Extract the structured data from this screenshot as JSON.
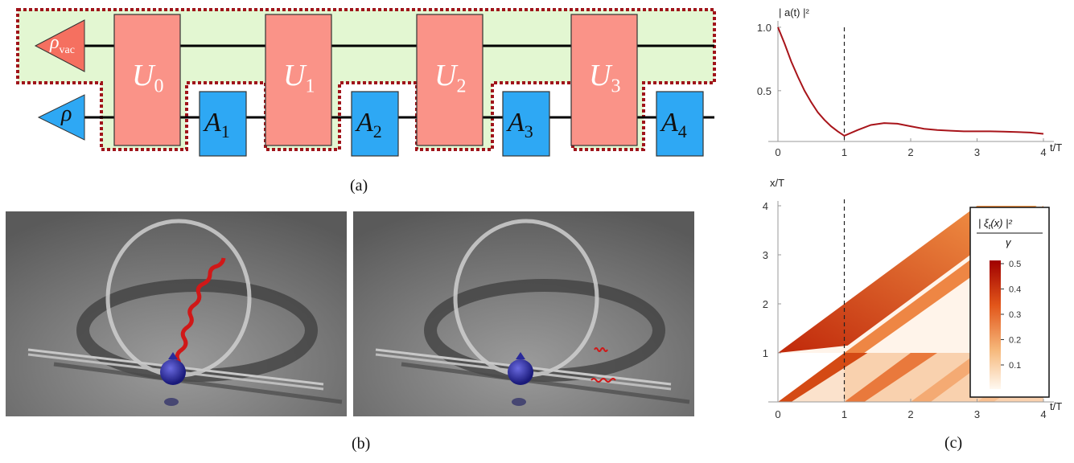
{
  "panel_a": {
    "caption": "(a)",
    "rho_vac": "ρ",
    "rho_vac_sub": "vac",
    "rho": "ρ",
    "unitaries": [
      {
        "base": "U",
        "sub": "0"
      },
      {
        "base": "U",
        "sub": "1"
      },
      {
        "base": "U",
        "sub": "2"
      },
      {
        "base": "U",
        "sub": "3"
      }
    ],
    "operators": [
      {
        "base": "A",
        "sub": "1"
      },
      {
        "base": "A",
        "sub": "2"
      },
      {
        "base": "A",
        "sub": "3"
      },
      {
        "base": "A",
        "sub": "4"
      }
    ],
    "colors": {
      "vac_band": "#e3f7d2",
      "unitary": "#fa9388",
      "operator": "#2ea8f4",
      "dotted": "#a0141a",
      "rho_vac": "#f57060"
    }
  },
  "panel_b": {
    "caption": "(b)"
  },
  "panel_c": {
    "caption": "(c)",
    "top_chart": {
      "type": "line",
      "ylabel": "| a(t) |²",
      "xlabel": "t/T",
      "xlim": [
        0,
        4
      ],
      "ylim": [
        0.1,
        1.05
      ],
      "xticks": [
        "0",
        "1",
        "2",
        "3",
        "4"
      ],
      "yticks": [
        {
          "v": 0.5,
          "label": "0.5"
        },
        {
          "v": 1.0,
          "label": "1.0"
        }
      ],
      "series": [
        {
          "x": [
            0,
            0.1,
            0.2,
            0.3,
            0.4,
            0.5,
            0.6,
            0.7,
            0.8,
            0.9,
            1.0,
            1.2,
            1.4,
            1.6,
            1.8,
            2.0,
            2.2,
            2.4,
            2.6,
            2.8,
            3.0,
            3.2,
            3.4,
            3.6,
            3.8,
            4.0
          ],
          "y": [
            1.0,
            0.87,
            0.73,
            0.61,
            0.5,
            0.41,
            0.33,
            0.27,
            0.22,
            0.18,
            0.145,
            0.19,
            0.23,
            0.245,
            0.24,
            0.22,
            0.2,
            0.19,
            0.185,
            0.18,
            0.18,
            0.18,
            0.178,
            0.175,
            0.17,
            0.16
          ]
        }
      ],
      "vline": 1
    },
    "bottom_chart": {
      "type": "heatmap",
      "ylabel": "x/T",
      "xlabel": "t/T",
      "xlim": [
        0,
        4
      ],
      "ylim": [
        0,
        4
      ],
      "xticks": [
        "0",
        "1",
        "2",
        "3",
        "4"
      ],
      "yticks": [
        "1",
        "2",
        "3",
        "4"
      ],
      "vline": 1,
      "colorbar": {
        "title_num": "| ξ",
        "title_sub": "t",
        "title_rest": "(x) |²",
        "title_den": "γ",
        "ticks": [
          "0.5",
          "0.4",
          "0.3",
          "0.2",
          "0.1"
        ]
      }
    }
  }
}
